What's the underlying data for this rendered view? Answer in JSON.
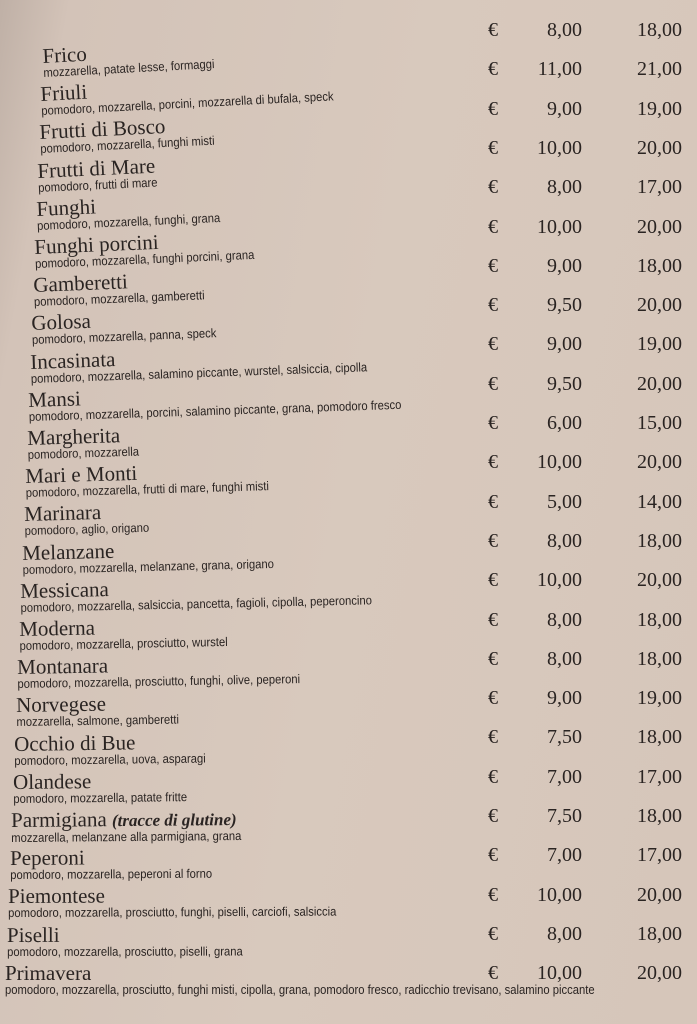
{
  "currency": "€",
  "items": [
    {
      "name": "Frico",
      "desc": "mozzarella, patate lesse, formaggi",
      "price_small": "8,00",
      "price_large": "18,00"
    },
    {
      "name": "Friuli",
      "desc": "pomodoro, mozzarella, porcini, mozzarella di bufala, speck",
      "price_small": "11,00",
      "price_large": "21,00"
    },
    {
      "name": "Frutti di Bosco",
      "desc": "pomodoro, mozzarella, funghi misti",
      "price_small": "9,00",
      "price_large": "19,00"
    },
    {
      "name": "Frutti di Mare",
      "desc": "pomodoro, frutti di mare",
      "price_small": "10,00",
      "price_large": "20,00"
    },
    {
      "name": "Funghi",
      "desc": "pomodoro, mozzarella, funghi, grana",
      "price_small": "8,00",
      "price_large": "17,00"
    },
    {
      "name": "Funghi porcini",
      "desc": "pomodoro, mozzarella, funghi porcini, grana",
      "price_small": "10,00",
      "price_large": "20,00"
    },
    {
      "name": "Gamberetti",
      "desc": "pomodoro, mozzarella, gamberetti",
      "price_small": "9,00",
      "price_large": "18,00"
    },
    {
      "name": "Golosa",
      "desc": "pomodoro, mozzarella, panna, speck",
      "price_small": "9,50",
      "price_large": "20,00"
    },
    {
      "name": "Incasinata",
      "desc": "pomodoro, mozzarella, salamino piccante, wurstel, salsiccia, cipolla",
      "price_small": "9,00",
      "price_large": "19,00"
    },
    {
      "name": "Mansi",
      "desc": "pomodoro, mozzarella, porcini, salamino piccante, grana, pomodoro fresco",
      "price_small": "9,50",
      "price_large": "20,00"
    },
    {
      "name": "Margherita",
      "desc": "pomodoro, mozzarella",
      "price_small": "6,00",
      "price_large": "15,00"
    },
    {
      "name": "Mari e Monti",
      "desc": "pomodoro, mozzarella, frutti di mare, funghi misti",
      "price_small": "10,00",
      "price_large": "20,00"
    },
    {
      "name": "Marinara",
      "desc": "pomodoro, aglio, origano",
      "price_small": "5,00",
      "price_large": "14,00"
    },
    {
      "name": "Melanzane",
      "desc": "pomodoro, mozzarella, melanzane, grana, origano",
      "price_small": "8,00",
      "price_large": "18,00"
    },
    {
      "name": "Messicana",
      "desc": "pomodoro, mozzarella, salsiccia, pancetta, fagioli, cipolla, peperoncino",
      "price_small": "10,00",
      "price_large": "20,00"
    },
    {
      "name": "Moderna",
      "desc": "pomodoro, mozzarella, prosciutto, wurstel",
      "price_small": "8,00",
      "price_large": "18,00"
    },
    {
      "name": "Montanara",
      "desc": "pomodoro, mozzarella, prosciutto, funghi, olive, peperoni",
      "price_small": "8,00",
      "price_large": "18,00"
    },
    {
      "name": "Norvegese",
      "desc": "mozzarella, salmone, gamberetti",
      "price_small": "9,00",
      "price_large": "19,00"
    },
    {
      "name": "Occhio di Bue",
      "desc": "pomodoro, mozzarella, uova, asparagi",
      "price_small": "7,50",
      "price_large": "18,00"
    },
    {
      "name": "Olandese",
      "desc": "pomodoro, mozzarella, patate fritte",
      "price_small": "7,00",
      "price_large": "17,00"
    },
    {
      "name": "Parmigiana",
      "note": "(tracce di glutine)",
      "desc": "mozzarella, melanzane alla parmigiana, grana",
      "price_small": "7,50",
      "price_large": "18,00"
    },
    {
      "name": "Peperoni",
      "desc": "pomodoro, mozzarella, peperoni al forno",
      "price_small": "7,00",
      "price_large": "17,00"
    },
    {
      "name": "Piemontese",
      "desc": "pomodoro, mozzarella, prosciutto, funghi, piselli, carciofi, salsiccia",
      "price_small": "10,00",
      "price_large": "20,00"
    },
    {
      "name": "Piselli",
      "desc": "pomodoro, mozzarella, prosciutto, piselli, grana",
      "price_small": "8,00",
      "price_large": "18,00"
    },
    {
      "name": "Primavera",
      "desc": "pomodoro, mozzarella, prosciutto, funghi misti, cipolla, grana, pomodoro fresco, radicchio trevisano, salamino piccante",
      "price_small": "10,00",
      "price_large": "20,00"
    }
  ]
}
